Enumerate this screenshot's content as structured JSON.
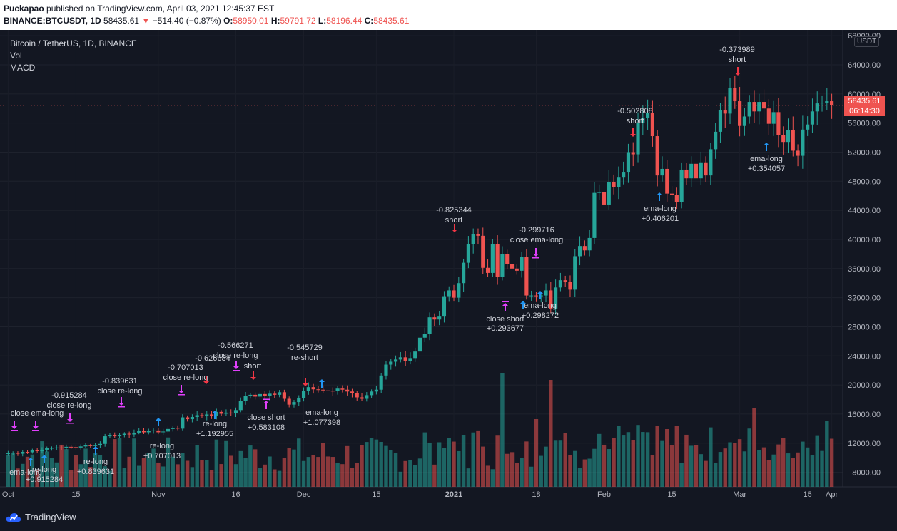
{
  "header": {
    "publisher": "Puckapao",
    "published_text": "published on TradingView.com, April 03, 2021 12:45:37 EST",
    "symbol": "BINANCE:BTCUSDT, 1D",
    "last": "58435.61",
    "change_icon": "down-triangle-icon",
    "change": "−514.40 (−0.87%)",
    "o_label": "O:",
    "o": "58950.01",
    "h_label": "H:",
    "h": "59791.72",
    "l_label": "L:",
    "l": "58196.44",
    "c_label": "C:",
    "c": "58435.61"
  },
  "legend": {
    "title": "Bitcoin / TetherUS, 1D, BINANCE",
    "vol": "Vol",
    "macd": "MACD"
  },
  "price_scale": {
    "currency": "USDT",
    "current_price": "58435.61",
    "countdown": "06:14:30"
  },
  "footer": {
    "brand": "TradingView"
  },
  "colors": {
    "up": "#26a69a",
    "down": "#ef5350",
    "purple": "#e040fb",
    "blue": "#2196f3",
    "red_arrow": "#f23645"
  },
  "chart_data": {
    "type": "candlestick",
    "title": "Bitcoin / TetherUS, 1D, BINANCE",
    "x_ticks": [
      "Oct",
      "15",
      "Nov",
      "16",
      "Dec",
      "15",
      "2021",
      "18",
      "Feb",
      "15",
      "Mar",
      "15",
      "Apr"
    ],
    "y_ticks": [
      "68000.00",
      "64000.00",
      "60000.00",
      "56000.00",
      "52000.00",
      "48000.00",
      "44000.00",
      "40000.00",
      "36000.00",
      "32000.00",
      "28000.00",
      "24000.00",
      "20000.00",
      "16000.00",
      "12000.00",
      "8000.00"
    ],
    "ylim": [
      6000,
      68800
    ],
    "closes": [
      10600,
      10700,
      10550,
      10800,
      10750,
      11000,
      10900,
      11100,
      11300,
      11350,
      11400,
      11300,
      11500,
      11450,
      11400,
      11550,
      11700,
      11600,
      11750,
      11900,
      12950,
      13050,
      12950,
      13100,
      13300,
      13200,
      13450,
      13700,
      13500,
      13650,
      13750,
      13500,
      13600,
      13950,
      14100,
      14000,
      15550,
      15300,
      15600,
      15850,
      15700,
      15950,
      15800,
      16300,
      16050,
      16200,
      16150,
      16550,
      17800,
      18500,
      18650,
      18400,
      18750,
      18450,
      18800,
      18650,
      19000,
      18100,
      17300,
      17650,
      18200,
      19200,
      19700,
      19400,
      19350,
      19250,
      19200,
      19150,
      19500,
      19350,
      19100,
      18850,
      18300,
      18100,
      18600,
      19100,
      19350,
      21300,
      22800,
      23200,
      23500,
      23800,
      23300,
      23700,
      24600,
      26500,
      27000,
      29300,
      29000,
      29400,
      32200,
      33000,
      32000,
      34000,
      36800,
      39400,
      40700,
      40500,
      36100,
      35400,
      39400,
      34900,
      38000,
      36600,
      36000,
      35700,
      37600,
      32300,
      32300,
      32200,
      32300,
      33000,
      30500,
      33400,
      34400,
      34200,
      33100,
      37700,
      39100,
      38500,
      40200,
      46400,
      46500,
      44800,
      47900,
      47200,
      48500,
      49200,
      52000,
      51700,
      56000,
      56700,
      57400,
      54200,
      48800,
      49700,
      46300,
      46100,
      45100,
      49600,
      48400,
      50400,
      48400,
      50600,
      48800,
      52400,
      54800,
      57800,
      57300,
      60800,
      59000,
      55600,
      56900,
      58900,
      57600,
      58900,
      58000,
      55900,
      57500,
      54300,
      53400,
      55000,
      52200,
      51500,
      55100,
      55800,
      57600,
      58700,
      58800,
      59000,
      58435.61
    ],
    "volume_note": "volume histogram pane shown below price",
    "annotations": [
      {
        "text": "-0.915284",
        "type": "label"
      },
      {
        "text": "close re-long",
        "type": "label"
      },
      {
        "text": "-0.839631",
        "type": "label"
      },
      {
        "text": "close re-long",
        "type": "label"
      },
      {
        "text": "-0.707013",
        "type": "label"
      },
      {
        "text": "close re-long",
        "type": "label"
      },
      {
        "text": "-0.626684",
        "type": "label"
      },
      {
        "text": "-0.566271",
        "type": "label"
      },
      {
        "text": "close re-long",
        "type": "label"
      },
      {
        "text": "short",
        "type": "label"
      },
      {
        "text": "-0.545729",
        "type": "label"
      },
      {
        "text": "re-short",
        "type": "label"
      },
      {
        "text": "-0.825344",
        "type": "label"
      },
      {
        "text": "short",
        "type": "label"
      },
      {
        "text": "-0.299716",
        "type": "label"
      },
      {
        "text": "close ema-long",
        "type": "label"
      },
      {
        "text": "-0.502808",
        "type": "label"
      },
      {
        "text": "short",
        "type": "label"
      },
      {
        "text": "-0.373989",
        "type": "label"
      },
      {
        "text": "short",
        "type": "label"
      },
      {
        "text": "ema-long",
        "type": "label"
      },
      {
        "text": "+0.354057",
        "type": "label"
      },
      {
        "text": "ema-long",
        "type": "label"
      },
      {
        "text": "+0.406201",
        "type": "label"
      },
      {
        "text": "ema-long",
        "type": "label"
      },
      {
        "text": "+0.298272",
        "type": "label"
      },
      {
        "text": "close short",
        "type": "label"
      },
      {
        "text": "+0.293677",
        "type": "label"
      },
      {
        "text": "ema-long",
        "type": "label"
      },
      {
        "text": "+1.077398",
        "type": "label"
      },
      {
        "text": "close short",
        "type": "label"
      },
      {
        "text": "+0.583108",
        "type": "label"
      },
      {
        "text": "re-long",
        "type": "label"
      },
      {
        "text": "+1.192955",
        "type": "label"
      },
      {
        "text": "re-long",
        "type": "label"
      },
      {
        "text": "+0.707013",
        "type": "label"
      },
      {
        "text": "re-long",
        "type": "label"
      },
      {
        "text": "+0.839631",
        "type": "label"
      },
      {
        "text": "re-long",
        "type": "label"
      },
      {
        "text": "+0.915284",
        "type": "label"
      },
      {
        "text": "ema-long",
        "type": "label"
      },
      {
        "text": "close ema-long",
        "type": "label"
      }
    ]
  }
}
